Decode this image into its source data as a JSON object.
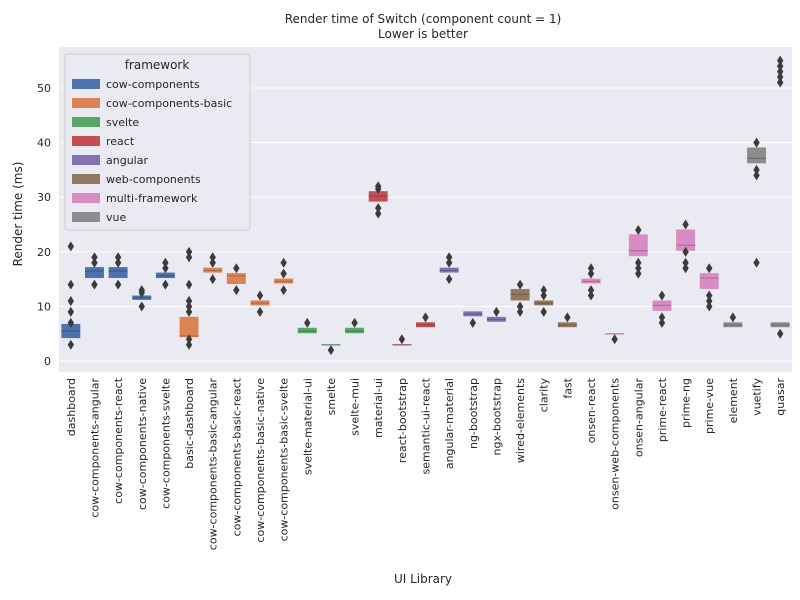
{
  "chart_data": {
    "type": "boxplot",
    "title": "Render time of Switch (component count = 1)",
    "subtitle": "Lower is better",
    "xlabel": "UI Library",
    "ylabel": "Render time (ms)",
    "ylim": [
      -2,
      57.5
    ],
    "yticks": [
      0,
      10,
      20,
      30,
      40,
      50
    ],
    "grid": true,
    "legend": {
      "title": "framework",
      "placement": "top-left",
      "entries": [
        {
          "name": "cow-components",
          "color": "#4c72b0"
        },
        {
          "name": "cow-components-basic",
          "color": "#dd8452"
        },
        {
          "name": "svelte",
          "color": "#55a868"
        },
        {
          "name": "react",
          "color": "#c44e52"
        },
        {
          "name": "angular",
          "color": "#8172b3"
        },
        {
          "name": "web-components",
          "color": "#937860"
        },
        {
          "name": "multi-framework",
          "color": "#da8bc3"
        },
        {
          "name": "vue",
          "color": "#8c8c8c"
        }
      ]
    },
    "categories": [
      {
        "name": "dashboard",
        "framework": "cow-components",
        "q1": 4.2,
        "median": 5.5,
        "q3": 6.8,
        "outliers": [
          3,
          7,
          9,
          11,
          14,
          21
        ]
      },
      {
        "name": "cow-components-angular",
        "framework": "cow-components",
        "q1": 15.2,
        "median": 16.5,
        "q3": 17.2,
        "outliers": [
          14,
          18,
          19
        ]
      },
      {
        "name": "cow-components-react",
        "framework": "cow-components",
        "q1": 15.2,
        "median": 16.5,
        "q3": 17.2,
        "outliers": [
          14,
          18,
          19
        ]
      },
      {
        "name": "cow-components-native",
        "framework": "cow-components",
        "q1": 11.2,
        "median": 11.6,
        "q3": 12.0,
        "outliers": [
          10,
          12.5,
          13
        ]
      },
      {
        "name": "cow-components-svelte",
        "framework": "cow-components",
        "q1": 15.2,
        "median": 15.6,
        "q3": 16.2,
        "outliers": [
          14,
          17,
          18
        ]
      },
      {
        "name": "basic-dashboard",
        "framework": "cow-components-basic",
        "q1": 4.4,
        "median": 4.6,
        "q3": 8.1,
        "outliers": [
          3,
          4,
          9,
          10,
          11,
          14,
          19,
          20
        ]
      },
      {
        "name": "cow-components-basic-angular",
        "framework": "cow-components-basic",
        "q1": 16.2,
        "median": 16.6,
        "q3": 17.1,
        "outliers": [
          15,
          18,
          19
        ]
      },
      {
        "name": "cow-components-basic-react",
        "framework": "cow-components-basic",
        "q1": 14.1,
        "median": 15.6,
        "q3": 16.1,
        "outliers": [
          13,
          17
        ]
      },
      {
        "name": "cow-components-basic-native",
        "framework": "cow-components-basic",
        "q1": 10.2,
        "median": 10.6,
        "q3": 11.1,
        "outliers": [
          9,
          12
        ]
      },
      {
        "name": "cow-components-basic-svelte",
        "framework": "cow-components-basic",
        "q1": 14.2,
        "median": 14.6,
        "q3": 15.1,
        "outliers": [
          13,
          16,
          18
        ]
      },
      {
        "name": "svelte-material-ui",
        "framework": "svelte",
        "q1": 5.1,
        "median": 5.5,
        "q3": 6.1,
        "outliers": [
          7
        ]
      },
      {
        "name": "smelte",
        "framework": "svelte",
        "q1": 3.0,
        "median": 3.0,
        "q3": 3.05,
        "outliers": [
          2
        ]
      },
      {
        "name": "svelte-mui",
        "framework": "svelte",
        "q1": 5.1,
        "median": 5.5,
        "q3": 6.1,
        "outliers": [
          7
        ]
      },
      {
        "name": "material-ui",
        "framework": "react",
        "q1": 29.2,
        "median": 30.2,
        "q3": 31.1,
        "outliers": [
          27,
          28,
          31.5,
          32
        ]
      },
      {
        "name": "react-bootstrap",
        "framework": "react",
        "q1": 3.0,
        "median": 3.0,
        "q3": 3.05,
        "outliers": [
          4
        ]
      },
      {
        "name": "semantic-ui-react",
        "framework": "react",
        "q1": 6.2,
        "median": 6.6,
        "q3": 7.1,
        "outliers": [
          8
        ]
      },
      {
        "name": "angular-material",
        "framework": "angular",
        "q1": 16.2,
        "median": 16.6,
        "q3": 17.1,
        "outliers": [
          15,
          18,
          19
        ]
      },
      {
        "name": "ng-bootstrap",
        "framework": "angular",
        "q1": 8.2,
        "median": 8.6,
        "q3": 9.1,
        "outliers": [
          7
        ]
      },
      {
        "name": "ngx-bootstrap",
        "framework": "angular",
        "q1": 7.2,
        "median": 7.6,
        "q3": 8.1,
        "outliers": [
          9
        ]
      },
      {
        "name": "wired-elements",
        "framework": "web-components",
        "q1": 11.1,
        "median": 12.2,
        "q3": 13.2,
        "outliers": [
          9,
          10,
          14
        ]
      },
      {
        "name": "clarity",
        "framework": "web-components",
        "q1": 10.2,
        "median": 10.6,
        "q3": 11.1,
        "outliers": [
          9,
          12,
          13
        ]
      },
      {
        "name": "fast",
        "framework": "web-components",
        "q1": 6.2,
        "median": 6.6,
        "q3": 7.1,
        "outliers": [
          8
        ]
      },
      {
        "name": "onsen-react",
        "framework": "multi-framework",
        "q1": 14.2,
        "median": 14.6,
        "q3": 15.1,
        "outliers": [
          12,
          13,
          16,
          17
        ]
      },
      {
        "name": "onsen-web-components",
        "framework": "multi-framework",
        "q1": 5.0,
        "median": 5.0,
        "q3": 5.05,
        "outliers": [
          4
        ]
      },
      {
        "name": "onsen-angular",
        "framework": "multi-framework",
        "q1": 19.2,
        "median": 20.2,
        "q3": 23.2,
        "outliers": [
          16,
          17,
          18,
          24
        ]
      },
      {
        "name": "prime-react",
        "framework": "multi-framework",
        "q1": 9.2,
        "median": 10.2,
        "q3": 11.1,
        "outliers": [
          7,
          8,
          12
        ]
      },
      {
        "name": "prime-ng",
        "framework": "multi-framework",
        "q1": 20.2,
        "median": 21.2,
        "q3": 24.1,
        "outliers": [
          17,
          18,
          20,
          25
        ]
      },
      {
        "name": "prime-vue",
        "framework": "multi-framework",
        "q1": 13.2,
        "median": 15.2,
        "q3": 16.1,
        "outliers": [
          10,
          11,
          12,
          17
        ]
      },
      {
        "name": "element",
        "framework": "vue",
        "q1": 6.2,
        "median": 6.6,
        "q3": 7.1,
        "outliers": [
          8
        ]
      },
      {
        "name": "vuetify",
        "framework": "vue",
        "q1": 36.2,
        "median": 37.1,
        "q3": 39.1,
        "outliers": [
          18,
          34,
          35,
          40
        ]
      },
      {
        "name": "quasar",
        "framework": "vue",
        "q1": 6.2,
        "median": 6.6,
        "q3": 7.1,
        "outliers": [
          5,
          51,
          52,
          53,
          54,
          55
        ]
      }
    ]
  }
}
